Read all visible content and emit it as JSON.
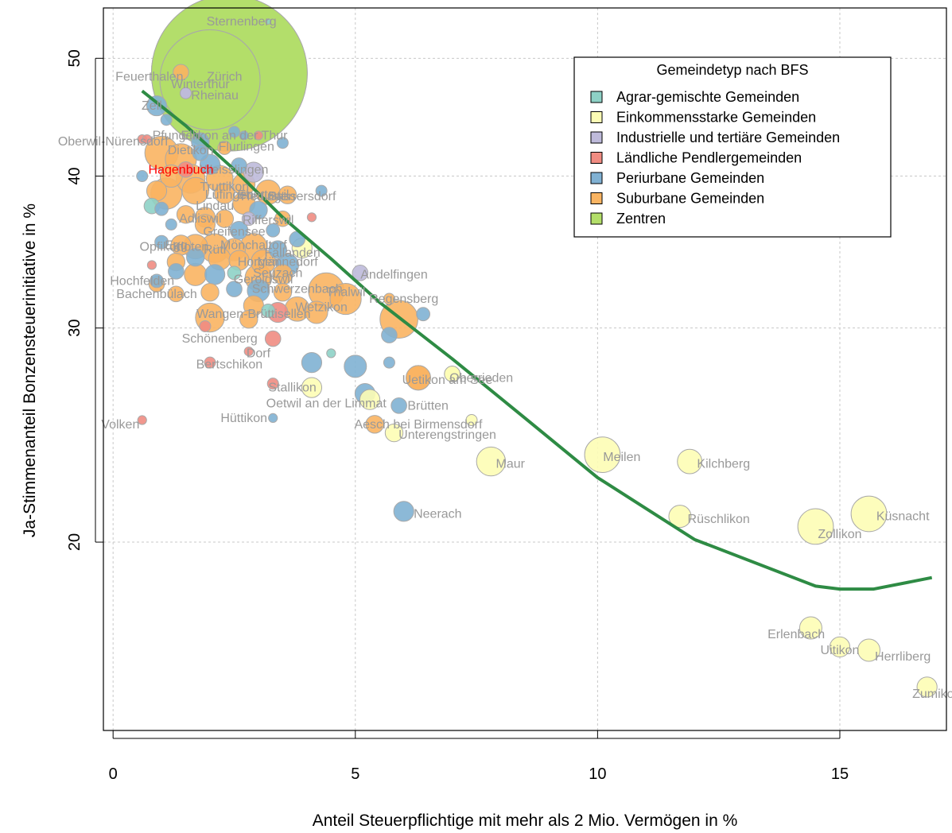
{
  "chart_data": {
    "type": "scatter",
    "xlabel": "Anteil Steuerpflichtige mit mehr als 2 Mio. Vermögen in %",
    "ylabel": "Ja-Stimmenanteil Bonzensteuerinitiative in %",
    "xlim": [
      -0.2,
      17.2
    ],
    "ylim": [
      14,
      55
    ],
    "y_scale": "log",
    "x_ticks": [
      "0",
      "5",
      "10",
      "15"
    ],
    "y_ticks": [
      "20",
      "30",
      "40",
      "50"
    ],
    "grid": true,
    "legend": {
      "title": "Gemeindetyp nach BFS",
      "position": "top-right",
      "entries": [
        {
          "label": "Agrar-gemischte Gemeinden",
          "color": "#8ED1C6"
        },
        {
          "label": "Einkommensstarke Gemeinden",
          "color": "#FDFDB5"
        },
        {
          "label": "Industrielle und tertiäre Gemeinden",
          "color": "#BEBADA"
        },
        {
          "label": "Ländliche Pendlergemeinden",
          "color": "#F08C82"
        },
        {
          "label": "Periurbane Gemeinden",
          "color": "#80B1D3"
        },
        {
          "label": "Suburbane Gemeinden",
          "color": "#F9B462"
        },
        {
          "label": "Zentren",
          "color": "#B3DE69"
        }
      ]
    },
    "trend_color": "#2E8B44",
    "trend": [
      {
        "x": 0.6,
        "y": 47.0
      },
      {
        "x": 1.5,
        "y": 44.0
      },
      {
        "x": 2.5,
        "y": 40.5
      },
      {
        "x": 3.5,
        "y": 37.0
      },
      {
        "x": 4.5,
        "y": 34.2
      },
      {
        "x": 5.5,
        "y": 31.5
      },
      {
        "x": 7.0,
        "y": 28.3
      },
      {
        "x": 8.5,
        "y": 25.3
      },
      {
        "x": 10.0,
        "y": 22.6
      },
      {
        "x": 12.0,
        "y": 20.1
      },
      {
        "x": 14.5,
        "y": 18.4
      },
      {
        "x": 15.0,
        "y": 18.3
      },
      {
        "x": 15.7,
        "y": 18.3
      },
      {
        "x": 16.9,
        "y": 18.7
      }
    ],
    "labeled_points": [
      {
        "name": "Sternenberg",
        "x": 3.2,
        "y": 53.6,
        "size": 2.5,
        "type": 0,
        "lab": [
          2.65,
          53.6
        ]
      },
      {
        "name": "Zürich",
        "x": 2.4,
        "y": 48.6,
        "size": 70,
        "type": 6,
        "lab": [
          2.3,
          48.3
        ]
      },
      {
        "name": "Winterthur",
        "x": 2.0,
        "y": 48.0,
        "size": 45,
        "type": 6,
        "lab": [
          1.8,
          47.6
        ]
      },
      {
        "name": "Feuerthalen",
        "x": 1.4,
        "y": 48.7,
        "size": 7,
        "type": 5,
        "lab": [
          0.75,
          48.3
        ]
      },
      {
        "name": "Rheinau",
        "x": 1.5,
        "y": 46.8,
        "size": 5,
        "type": 2,
        "lab": [
          2.1,
          46.6
        ]
      },
      {
        "name": "Ellikon an der Thur",
        "x": 2.7,
        "y": 43.2,
        "size": 4,
        "type": 4,
        "lab": [
          2.5,
          43.2
        ]
      },
      {
        "name": "Flurlingen",
        "x": 2.3,
        "y": 42.2,
        "size": 6,
        "type": 5,
        "lab": [
          2.75,
          42.3
        ]
      },
      {
        "name": "Hagenbuch",
        "x": 1.5,
        "y": 40.5,
        "size": 7,
        "type": 3,
        "lab": [
          1.4,
          40.5
        ],
        "highlight": true
      },
      {
        "name": "Andelfingen",
        "x": 5.1,
        "y": 33.3,
        "size": 7,
        "type": 2,
        "lab": [
          5.8,
          33.2
        ]
      },
      {
        "name": "Regensberg",
        "x": 5.7,
        "y": 31.7,
        "size": 5,
        "type": 5,
        "lab": [
          6.0,
          31.7
        ]
      },
      {
        "name": "Hochfelden",
        "x": 0.9,
        "y": 32.8,
        "size": 6,
        "type": 4,
        "lab": [
          0.6,
          32.8
        ]
      },
      {
        "name": "Bachenbülach",
        "x": 1.3,
        "y": 32.0,
        "size": 7,
        "type": 5,
        "lab": [
          0.9,
          32.0
        ]
      },
      {
        "name": "Schönenberg",
        "x": 3.3,
        "y": 29.4,
        "size": 7,
        "type": 3,
        "lab": [
          2.2,
          29.4
        ]
      },
      {
        "name": "Bertschikon",
        "x": 2.0,
        "y": 28.1,
        "size": 5,
        "type": 3,
        "lab": [
          2.4,
          28.0
        ]
      },
      {
        "name": "Dorf",
        "x": 2.8,
        "y": 28.7,
        "size": 4,
        "type": 3,
        "lab": [
          3.0,
          28.6
        ]
      },
      {
        "name": "Stallikon",
        "x": 4.1,
        "y": 26.8,
        "size": 9,
        "type": 1,
        "lab": [
          3.7,
          26.8
        ]
      },
      {
        "name": "Oetwil an der Limmat",
        "x": 5.3,
        "y": 26.2,
        "size": 9,
        "type": 1,
        "lab": [
          4.4,
          26.0
        ]
      },
      {
        "name": "Hüttikon",
        "x": 3.3,
        "y": 25.3,
        "size": 4,
        "type": 4,
        "lab": [
          2.7,
          25.3
        ]
      },
      {
        "name": "Brütten",
        "x": 5.9,
        "y": 25.9,
        "size": 7,
        "type": 4,
        "lab": [
          6.5,
          25.9
        ]
      },
      {
        "name": "Uetikon am See",
        "x": 6.3,
        "y": 27.3,
        "size": 11,
        "type": 5,
        "lab": [
          6.9,
          27.2
        ]
      },
      {
        "name": "Oberrieden",
        "x": 7.0,
        "y": 27.5,
        "size": 7,
        "type": 1,
        "lab": [
          7.6,
          27.3
        ]
      },
      {
        "name": "Aesch bei Birmensdorf",
        "x": 7.4,
        "y": 25.2,
        "size": 5,
        "type": 1,
        "lab": [
          6.3,
          25.0
        ]
      },
      {
        "name": "Unterengstringen",
        "x": 5.8,
        "y": 24.6,
        "size": 8,
        "type": 1,
        "lab": [
          6.9,
          24.5
        ]
      },
      {
        "name": "Maur",
        "x": 7.8,
        "y": 23.3,
        "size": 13,
        "type": 1,
        "lab": [
          8.2,
          23.2
        ]
      },
      {
        "name": "Meilen",
        "x": 10.1,
        "y": 23.6,
        "size": 16,
        "type": 1,
        "lab": [
          10.5,
          23.5
        ]
      },
      {
        "name": "Kilchberg",
        "x": 11.9,
        "y": 23.3,
        "size": 11,
        "type": 1,
        "lab": [
          12.6,
          23.2
        ]
      },
      {
        "name": "Neerach",
        "x": 6.0,
        "y": 21.2,
        "size": 9,
        "type": 4,
        "lab": [
          6.7,
          21.1
        ]
      },
      {
        "name": "Rüschlikon",
        "x": 11.7,
        "y": 21.0,
        "size": 10,
        "type": 1,
        "lab": [
          12.5,
          20.9
        ]
      },
      {
        "name": "Zollikon",
        "x": 14.5,
        "y": 20.6,
        "size": 16,
        "type": 1,
        "lab": [
          15.0,
          20.3
        ]
      },
      {
        "name": "Küsnacht",
        "x": 15.6,
        "y": 21.1,
        "size": 16,
        "type": 1,
        "lab": [
          16.3,
          21.0
        ]
      },
      {
        "name": "Erlenbach",
        "x": 14.4,
        "y": 17.0,
        "size": 10,
        "type": 1,
        "lab": [
          14.1,
          16.8
        ]
      },
      {
        "name": "Uitikon",
        "x": 15.0,
        "y": 16.4,
        "size": 9,
        "type": 1,
        "lab": [
          15.0,
          16.3
        ]
      },
      {
        "name": "Herrliberg",
        "x": 15.6,
        "y": 16.3,
        "size": 10,
        "type": 1,
        "lab": [
          16.3,
          16.1
        ]
      },
      {
        "name": "Zumikon",
        "x": 16.8,
        "y": 15.2,
        "size": 9,
        "type": 1,
        "lab": [
          17.0,
          15.0
        ]
      },
      {
        "name": "Oberwil-Nürensdorf",
        "x": 0.7,
        "y": 42.9,
        "size": 4,
        "type": 3,
        "lab": [
          0.0,
          42.7
        ]
      },
      {
        "name": "Volken",
        "x": 0.6,
        "y": 25.2,
        "size": 4,
        "type": 3,
        "lab": [
          0.15,
          25.0
        ]
      }
    ],
    "blob_labels": [
      {
        "text": "Zell",
        "x": 0.8,
        "y": 45.7
      },
      {
        "text": "Pfungen",
        "x": 1.3,
        "y": 43.2
      },
      {
        "text": "Dietikon",
        "x": 1.6,
        "y": 42.0
      },
      {
        "text": "Weisslingen",
        "x": 2.5,
        "y": 40.5
      },
      {
        "text": "Truttikon",
        "x": 2.3,
        "y": 39.2
      },
      {
        "text": "Ebertswil",
        "x": 3.1,
        "y": 38.6
      },
      {
        "text": "Lufingen",
        "x": 2.4,
        "y": 38.6
      },
      {
        "text": "Hedingen",
        "x": 3.2,
        "y": 38.5
      },
      {
        "text": "Lindau",
        "x": 2.1,
        "y": 37.8
      },
      {
        "text": "Adliswil",
        "x": 1.8,
        "y": 36.9
      },
      {
        "text": "Rifferswil",
        "x": 3.2,
        "y": 36.8
      },
      {
        "text": "Greifensee",
        "x": 2.5,
        "y": 36.0
      },
      {
        "text": "Egg",
        "x": 1.3,
        "y": 35.1
      },
      {
        "text": "Mönchaltorf",
        "x": 2.9,
        "y": 35.1
      },
      {
        "text": "Opfikon",
        "x": 1.0,
        "y": 35.0
      },
      {
        "text": "Fällanden",
        "x": 3.7,
        "y": 34.6
      },
      {
        "text": "Kloten",
        "x": 1.6,
        "y": 35.0
      },
      {
        "text": "Rüti",
        "x": 2.1,
        "y": 34.8
      },
      {
        "text": "Horgen",
        "x": 3.0,
        "y": 34.0
      },
      {
        "text": "Männedorf",
        "x": 3.6,
        "y": 34.0
      },
      {
        "text": "Seuzach",
        "x": 3.4,
        "y": 33.3
      },
      {
        "text": "Geroldswil",
        "x": 3.1,
        "y": 32.9
      },
      {
        "text": "Schwerzenbach",
        "x": 3.8,
        "y": 32.3
      },
      {
        "text": "Thalwil",
        "x": 4.8,
        "y": 32.1
      },
      {
        "text": "Wangen-Brüttisellen",
        "x": 2.9,
        "y": 30.8
      },
      {
        "text": "Wetzikon",
        "x": 4.3,
        "y": 31.2
      },
      {
        "text": "Bassersdorf",
        "x": 3.9,
        "y": 38.5
      }
    ],
    "bubbles": [
      [
        2.4,
        48.6,
        70,
        6
      ],
      [
        2.0,
        48.0,
        45,
        6
      ],
      [
        0.9,
        45.7,
        9,
        4
      ],
      [
        1.1,
        44.5,
        5,
        4
      ],
      [
        2.5,
        43.5,
        5,
        4
      ],
      [
        1.8,
        42.7,
        8,
        4
      ],
      [
        1.0,
        41.8,
        15,
        5
      ],
      [
        1.4,
        41.3,
        14,
        5
      ],
      [
        1.8,
        41.8,
        7,
        4
      ],
      [
        2.0,
        40.9,
        9,
        4
      ],
      [
        2.6,
        40.8,
        7,
        4
      ],
      [
        2.9,
        40.3,
        9,
        2
      ],
      [
        1.2,
        40.0,
        10,
        5
      ],
      [
        1.6,
        39.8,
        13,
        5
      ],
      [
        2.2,
        39.8,
        12,
        5
      ],
      [
        2.7,
        39.4,
        10,
        5
      ],
      [
        0.9,
        38.9,
        9,
        5
      ],
      [
        1.1,
        38.7,
        14,
        5
      ],
      [
        1.7,
        38.9,
        12,
        5
      ],
      [
        2.3,
        38.7,
        9,
        5
      ],
      [
        3.2,
        38.8,
        11,
        5
      ],
      [
        3.6,
        38.6,
        8,
        5
      ],
      [
        4.3,
        38.9,
        5,
        4
      ],
      [
        2.7,
        38.0,
        10,
        5
      ],
      [
        3.0,
        37.5,
        8,
        4
      ],
      [
        0.8,
        37.8,
        7,
        0
      ],
      [
        1.0,
        37.6,
        6,
        4
      ],
      [
        1.5,
        37.2,
        8,
        5
      ],
      [
        1.9,
        37.0,
        9,
        5
      ],
      [
        2.3,
        36.9,
        8,
        5
      ],
      [
        2.8,
        36.9,
        6,
        2
      ],
      [
        3.5,
        36.9,
        7,
        5
      ],
      [
        1.2,
        36.5,
        5,
        4
      ],
      [
        1.9,
        36.5,
        9,
        5
      ],
      [
        2.6,
        36.1,
        8,
        4
      ],
      [
        3.3,
        36.1,
        6,
        4
      ],
      [
        3.8,
        35.5,
        7,
        4
      ],
      [
        1.0,
        35.3,
        6,
        4
      ],
      [
        1.4,
        35.1,
        9,
        5
      ],
      [
        1.7,
        35.0,
        11,
        5
      ],
      [
        2.1,
        34.9,
        13,
        5
      ],
      [
        2.5,
        34.8,
        10,
        5
      ],
      [
        2.9,
        35.0,
        12,
        5
      ],
      [
        3.4,
        34.8,
        8,
        4
      ],
      [
        3.9,
        34.9,
        9,
        1
      ],
      [
        1.3,
        34.0,
        8,
        5
      ],
      [
        1.7,
        34.3,
        8,
        4
      ],
      [
        2.2,
        34.2,
        10,
        5
      ],
      [
        2.6,
        34.1,
        9,
        5
      ],
      [
        3.1,
        34.0,
        11,
        5
      ],
      [
        3.6,
        33.8,
        10,
        4
      ],
      [
        1.3,
        33.4,
        7,
        4
      ],
      [
        1.7,
        33.2,
        10,
        5
      ],
      [
        2.1,
        33.2,
        9,
        4
      ],
      [
        2.5,
        33.3,
        6,
        0
      ],
      [
        3.0,
        33.0,
        12,
        5
      ],
      [
        3.5,
        33.2,
        9,
        5
      ],
      [
        0.9,
        32.6,
        7,
        5
      ],
      [
        2.0,
        32.1,
        8,
        5
      ],
      [
        2.5,
        32.3,
        7,
        4
      ],
      [
        3.0,
        32.2,
        10,
        4
      ],
      [
        3.5,
        32.1,
        8,
        5
      ],
      [
        4.4,
        32.2,
        16,
        5
      ],
      [
        4.8,
        31.7,
        14,
        5
      ],
      [
        2.9,
        31.3,
        9,
        5
      ],
      [
        3.4,
        30.9,
        9,
        3
      ],
      [
        3.8,
        31.1,
        11,
        5
      ],
      [
        4.2,
        30.9,
        10,
        5
      ],
      [
        3.2,
        31.0,
        6,
        0
      ],
      [
        2.0,
        30.6,
        13,
        5
      ],
      [
        2.8,
        30.5,
        8,
        5
      ],
      [
        5.9,
        30.5,
        17,
        5
      ],
      [
        6.4,
        30.8,
        6,
        4
      ],
      [
        5.7,
        29.6,
        7,
        4
      ],
      [
        4.1,
        28.1,
        9,
        4
      ],
      [
        5.0,
        27.9,
        10,
        4
      ],
      [
        5.7,
        28.1,
        5,
        4
      ],
      [
        4.5,
        28.6,
        4,
        0
      ],
      [
        3.3,
        27.0,
        5,
        3
      ],
      [
        6.3,
        27.3,
        11,
        5
      ],
      [
        7.0,
        27.5,
        7,
        1
      ],
      [
        5.2,
        26.5,
        9,
        4
      ],
      [
        5.4,
        25.0,
        8,
        5
      ],
      [
        0.6,
        42.9,
        4,
        3
      ],
      [
        0.6,
        40.0,
        5,
        4
      ],
      [
        0.8,
        33.8,
        4,
        3
      ],
      [
        1.9,
        30.1,
        5,
        3
      ],
      [
        3.0,
        43.2,
        4,
        3
      ],
      [
        3.5,
        42.6,
        5,
        4
      ],
      [
        4.1,
        37.0,
        4,
        3
      ],
      [
        1.5,
        46.8,
        5,
        2
      ]
    ]
  }
}
